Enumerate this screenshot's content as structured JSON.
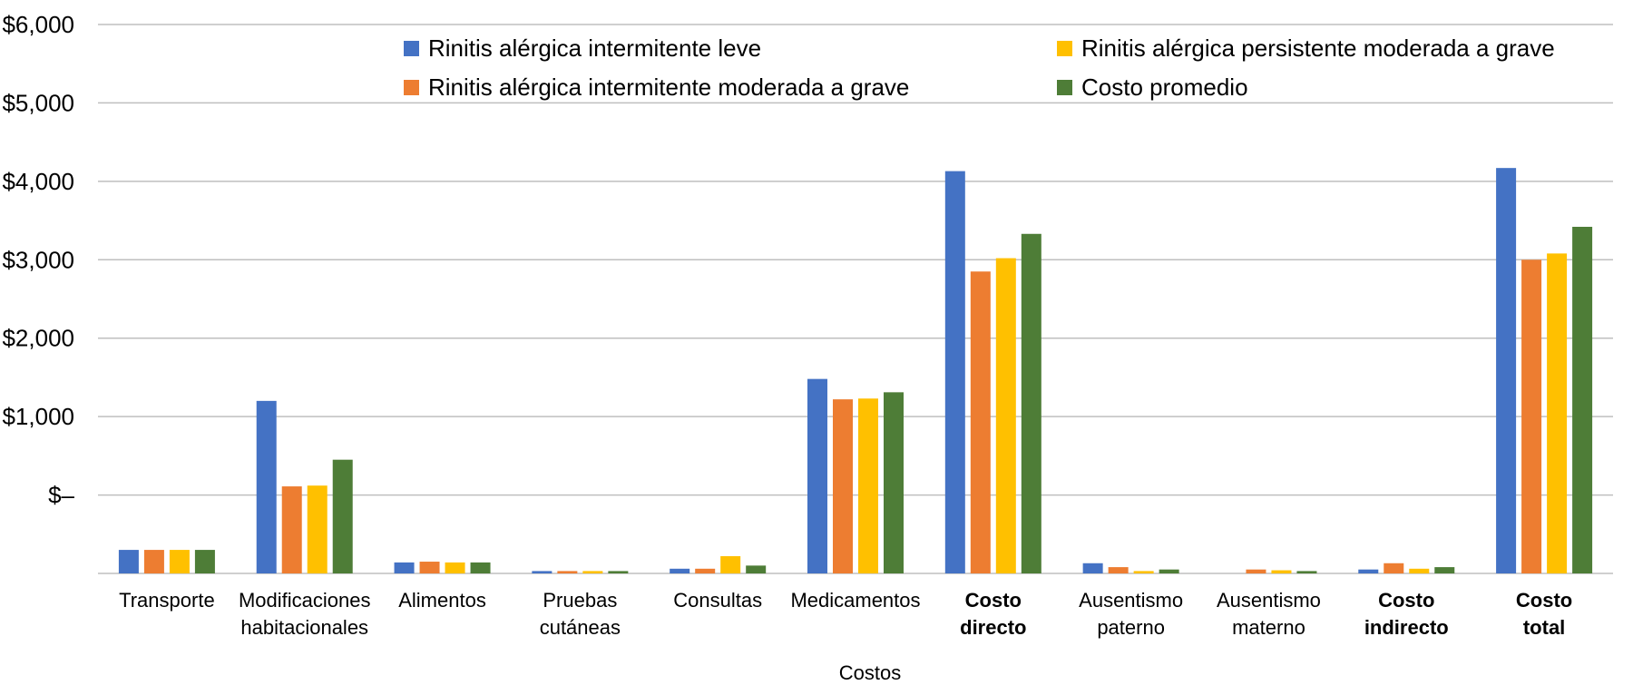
{
  "chart_data": {
    "type": "bar",
    "title": "",
    "xlabel": "Costos",
    "ylabel": "",
    "ylim": [
      -1000,
      6000
    ],
    "y_ticks": [
      "$–",
      "$1,000",
      "$2,000",
      "$3,000",
      "$4,000",
      "$5,000",
      "$6,000"
    ],
    "y_tick_values": [
      0,
      1000,
      2000,
      3000,
      4000,
      5000,
      6000
    ],
    "grid": true,
    "legend_position": "top",
    "categories": [
      {
        "lines": [
          "Transporte"
        ],
        "bold": false
      },
      {
        "lines": [
          "Modificaciones",
          "habitacionales"
        ],
        "bold": false
      },
      {
        "lines": [
          "Alimentos"
        ],
        "bold": false
      },
      {
        "lines": [
          "Pruebas",
          "cutáneas"
        ],
        "bold": false
      },
      {
        "lines": [
          "Consultas"
        ],
        "bold": false
      },
      {
        "lines": [
          "Medicamentos"
        ],
        "bold": false
      },
      {
        "lines": [
          "Costo",
          "directo"
        ],
        "bold": true
      },
      {
        "lines": [
          "Ausentismo",
          "paterno"
        ],
        "bold": false
      },
      {
        "lines": [
          "Ausentismo",
          "materno"
        ],
        "bold": false
      },
      {
        "lines": [
          "Costo",
          "indirecto"
        ],
        "bold": true
      },
      {
        "lines": [
          "Costo",
          "total"
        ],
        "bold": true
      }
    ],
    "series": [
      {
        "name": "Rinitis alérgica intermitente leve",
        "color": "#4472C4",
        "values": [
          -700,
          1200,
          -860,
          -970,
          -940,
          1480,
          4130,
          -870,
          -1000,
          -950,
          4170
        ]
      },
      {
        "name": "Rinitis alérgica intermitente moderada a grave",
        "color": "#ED7D31",
        "values": [
          -700,
          110,
          -850,
          -970,
          -940,
          1220,
          2850,
          -920,
          -950,
          -870,
          3000
        ]
      },
      {
        "name": "Rinitis alérgica persistente moderada a grave",
        "color": "#FFC000",
        "values": [
          -700,
          120,
          -860,
          -970,
          -780,
          1230,
          3020,
          -970,
          -960,
          -940,
          3080
        ]
      },
      {
        "name": "Costo promedio",
        "color": "#4E7D37",
        "values": [
          -700,
          450,
          -860,
          -970,
          -900,
          1310,
          3330,
          -950,
          -970,
          -920,
          3420
        ]
      }
    ]
  }
}
